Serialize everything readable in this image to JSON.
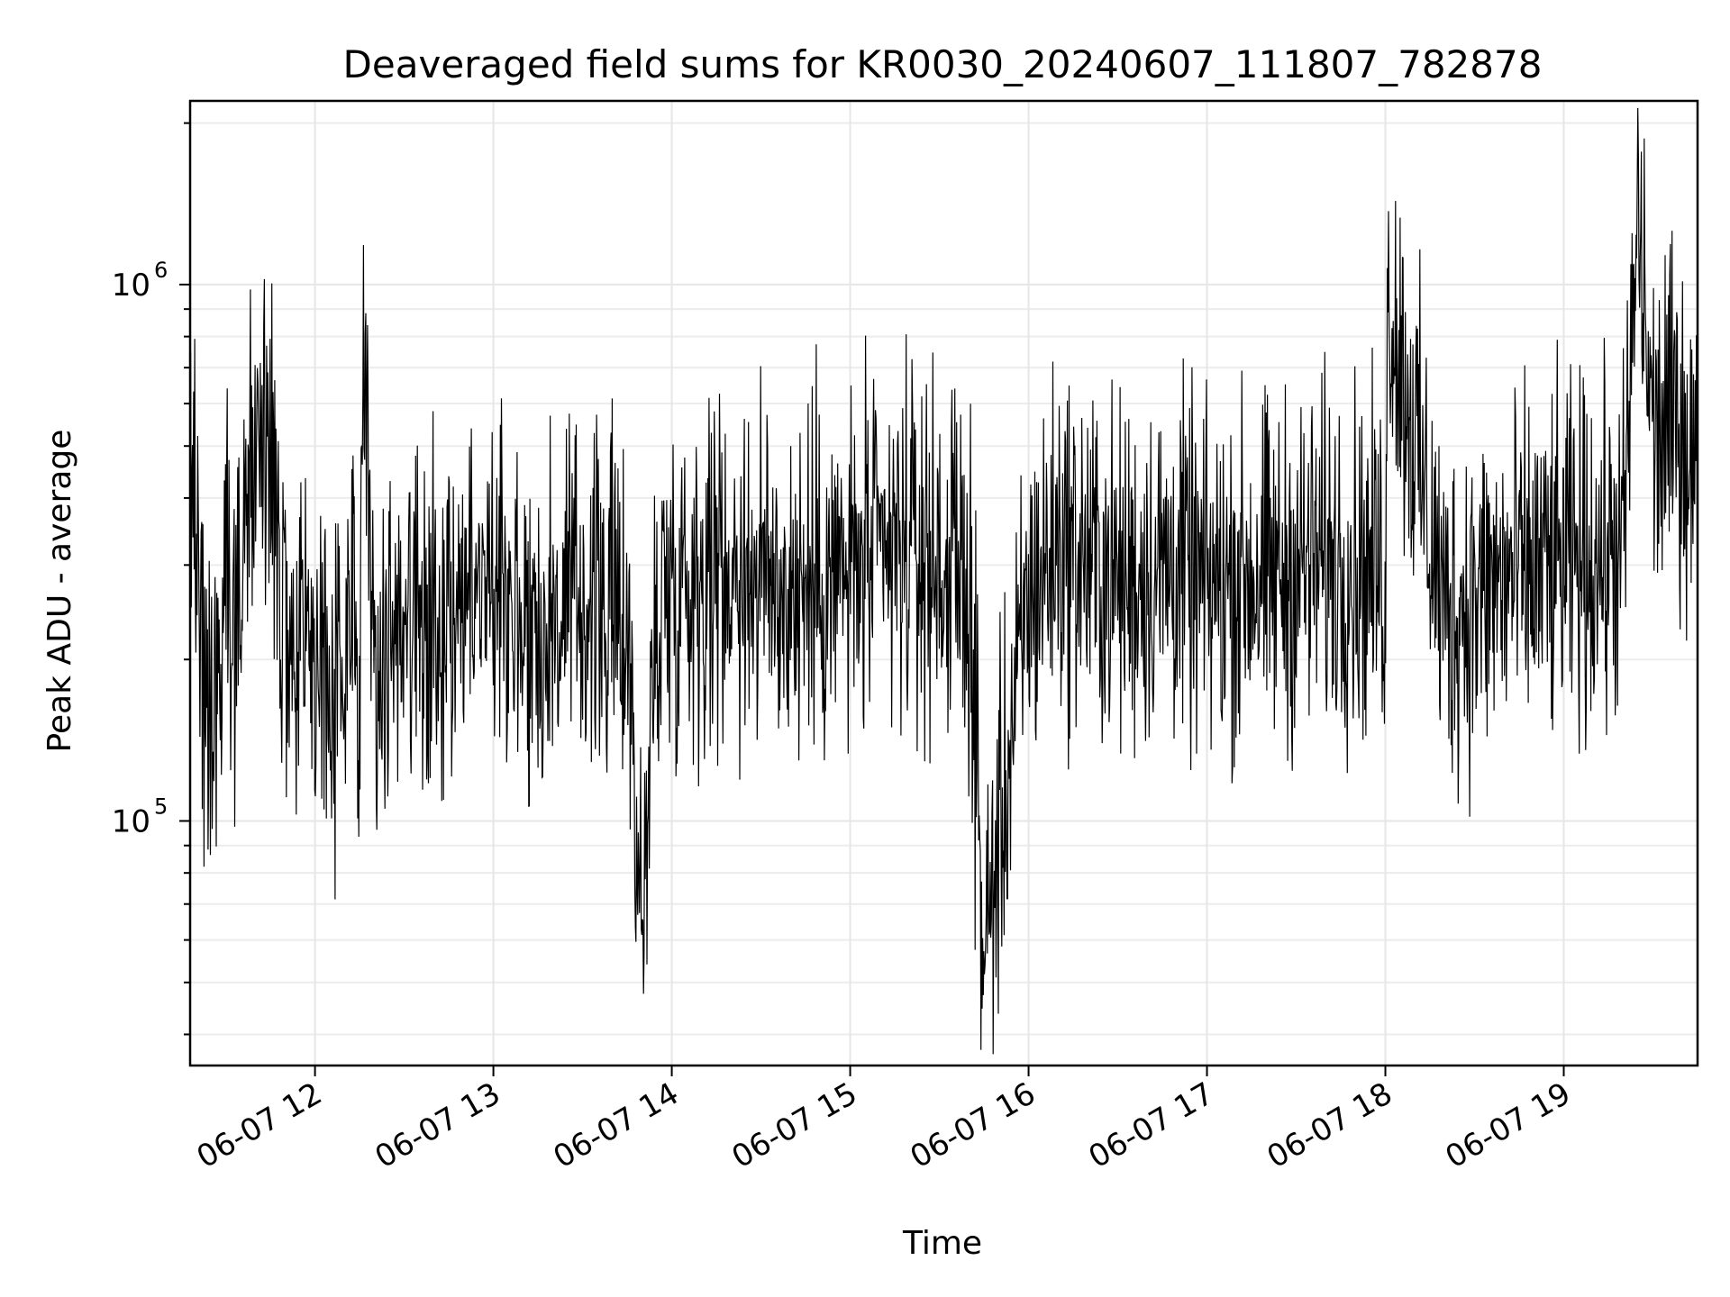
{
  "chart_data": {
    "type": "line",
    "title": "Deaveraged field sums for KR0030_20240607_111807_782878",
    "xlabel": "Time",
    "ylabel": "Peak ADU - average",
    "y_scale": "log",
    "ylim": [
      35000,
      2200000
    ],
    "xlim": [
      "2024-06-07 11:18",
      "2024-06-07 19:45"
    ],
    "grid": true,
    "line_color": "#000000",
    "x_ticks": [
      {
        "label": "06-07 12",
        "time": "2024-06-07 12:00"
      },
      {
        "label": "06-07 13",
        "time": "2024-06-07 13:00"
      },
      {
        "label": "06-07 14",
        "time": "2024-06-07 14:00"
      },
      {
        "label": "06-07 15",
        "time": "2024-06-07 15:00"
      },
      {
        "label": "06-07 16",
        "time": "2024-06-07 16:00"
      },
      {
        "label": "06-07 17",
        "time": "2024-06-07 17:00"
      },
      {
        "label": "06-07 18",
        "time": "2024-06-07 18:00"
      },
      {
        "label": "06-07 19",
        "time": "2024-06-07 19:00"
      }
    ],
    "y_ticks": [
      {
        "base": "10",
        "exp": "5",
        "value": 100000
      },
      {
        "base": "10",
        "exp": "6",
        "value": 1000000
      }
    ],
    "series": [
      {
        "x": [
          "2024-06-07 11:18",
          "2024-06-07 11:25",
          "2024-06-07 11:30",
          "2024-06-07 11:35",
          "2024-06-07 11:40",
          "2024-06-07 11:45",
          "2024-06-07 11:50",
          "2024-06-07 11:53",
          "2024-06-07 11:55",
          "2024-06-07 12:00",
          "2024-06-07 12:08",
          "2024-06-07 12:15",
          "2024-06-07 12:16",
          "2024-06-07 12:20",
          "2024-06-07 12:30",
          "2024-06-07 12:45",
          "2024-06-07 13:00",
          "2024-06-07 13:15",
          "2024-06-07 13:30",
          "2024-06-07 13:45",
          "2024-06-07 13:50",
          "2024-06-07 13:55",
          "2024-06-07 14:00",
          "2024-06-07 14:20",
          "2024-06-07 14:40",
          "2024-06-07 15:00",
          "2024-06-07 15:20",
          "2024-06-07 15:40",
          "2024-06-07 15:45",
          "2024-06-07 16:00",
          "2024-06-07 16:10",
          "2024-06-07 16:30",
          "2024-06-07 16:50",
          "2024-06-07 17:00",
          "2024-06-07 17:15",
          "2024-06-07 17:20",
          "2024-06-07 17:40",
          "2024-06-07 18:00",
          "2024-06-07 18:01",
          "2024-06-07 18:20",
          "2024-06-07 18:40",
          "2024-06-07 19:00",
          "2024-06-07 19:10",
          "2024-06-07 19:20",
          "2024-06-07 19:25",
          "2024-06-07 19:30",
          "2024-06-07 19:40",
          "2024-06-07 19:45"
        ],
        "y": [
          480000,
          140000,
          300000,
          270000,
          550000,
          430000,
          230000,
          130000,
          260000,
          200000,
          180000,
          210000,
          1200000,
          190000,
          250000,
          240000,
          300000,
          220000,
          260000,
          240000,
          60000,
          250000,
          280000,
          300000,
          270000,
          290000,
          320000,
          280000,
          55000,
          260000,
          330000,
          280000,
          300000,
          270000,
          290000,
          280000,
          310000,
          290000,
          1000000,
          240000,
          280000,
          300000,
          310000,
          320000,
          1350000,
          520000,
          560000,
          400000
        ]
      }
    ]
  }
}
